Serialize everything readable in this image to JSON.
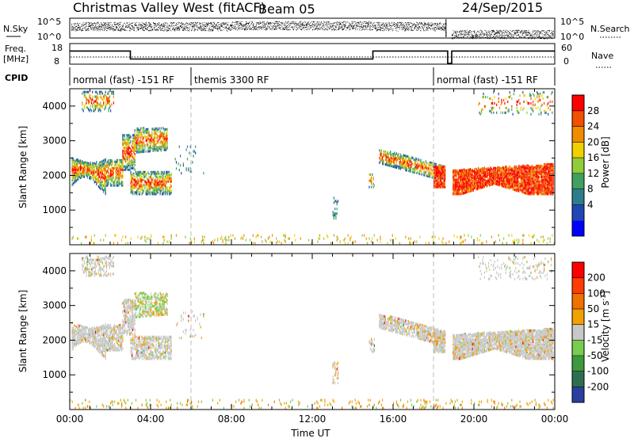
{
  "header": {
    "radar": "Christmas Valley West (fitACF)",
    "beam": "Beam 05",
    "date": "24/Sep/2015"
  },
  "strips": {
    "nsky_label": "N.Sky",
    "nsky_ticks": [
      "10^5",
      "10^0"
    ],
    "nsearch_label": "N.Search",
    "nsearch_ticks": [
      "10^5",
      "10^0"
    ],
    "freq_label_1": "Freq.",
    "freq_label_2": "[MHz]",
    "freq_ticks": [
      "18",
      "8"
    ],
    "nave_label": "Nave",
    "nave_ticks": [
      "60",
      "0"
    ],
    "cpid_label": "CPID",
    "cpid_segments": [
      {
        "label": "normal (fast) -151 RF",
        "start_hour": 0,
        "end_hour": 6
      },
      {
        "label": "themis 3300 RF",
        "start_hour": 6,
        "end_hour": 18
      },
      {
        "label": "normal (fast) -151 RF",
        "start_hour": 18,
        "end_hour": 24
      }
    ],
    "freq_steps": [
      {
        "start_hour": 0,
        "end_hour": 3,
        "value": 14.5
      },
      {
        "start_hour": 3,
        "end_hour": 15,
        "value": 10.3
      },
      {
        "start_hour": 15,
        "end_hour": 18.7,
        "value": 14.5
      },
      {
        "start_hour": 18.9,
        "end_hour": 24,
        "value": 14.5
      }
    ],
    "nave_level": 20
  },
  "chart_data": [
    {
      "type": "heatmap",
      "name": "power",
      "ylabel": "Slant Range [km]",
      "xlabel": "",
      "colorbar_label": "Power [dB]",
      "colorbar_ticks": [
        "28",
        "24",
        "20",
        "16",
        "12",
        "8",
        "4"
      ],
      "colorbar_range": [
        0,
        32
      ],
      "ylim": [
        0,
        4500
      ],
      "y_ticks": [
        "4000",
        "3000",
        "2000",
        "1000"
      ],
      "xlim_hours": [
        0,
        24
      ],
      "dashed_hours": [
        6,
        18
      ],
      "colors": [
        "#0000ff",
        "#1f46b4",
        "#2e7d8c",
        "#3fa060",
        "#8fcd3a",
        "#f0d000",
        "#f08c00",
        "#f05000",
        "#ff0000"
      ]
    },
    {
      "type": "heatmap",
      "name": "velocity",
      "ylabel": "Slant Range [km]",
      "xlabel": "Time UT",
      "colorbar_label": "Velocity [m s^-1]",
      "colorbar_ticks": [
        "200",
        "100",
        "50",
        "15",
        "-15",
        "-50",
        "-100",
        "-200"
      ],
      "ylim": [
        0,
        4500
      ],
      "y_ticks": [
        "4000",
        "3000",
        "2000",
        "1000"
      ],
      "x_ticks": [
        "00:00",
        "04:00",
        "08:00",
        "12:00",
        "16:00",
        "20:00",
        "00:00"
      ],
      "xlim_hours": [
        0,
        24
      ],
      "dashed_hours": [
        6,
        18
      ],
      "colors": [
        "#2a3fa0",
        "#2e6e50",
        "#3c9a3c",
        "#78cc50",
        "#c8c8c8",
        "#f0a000",
        "#f07000",
        "#ff3c00",
        "#ff0000"
      ]
    }
  ]
}
